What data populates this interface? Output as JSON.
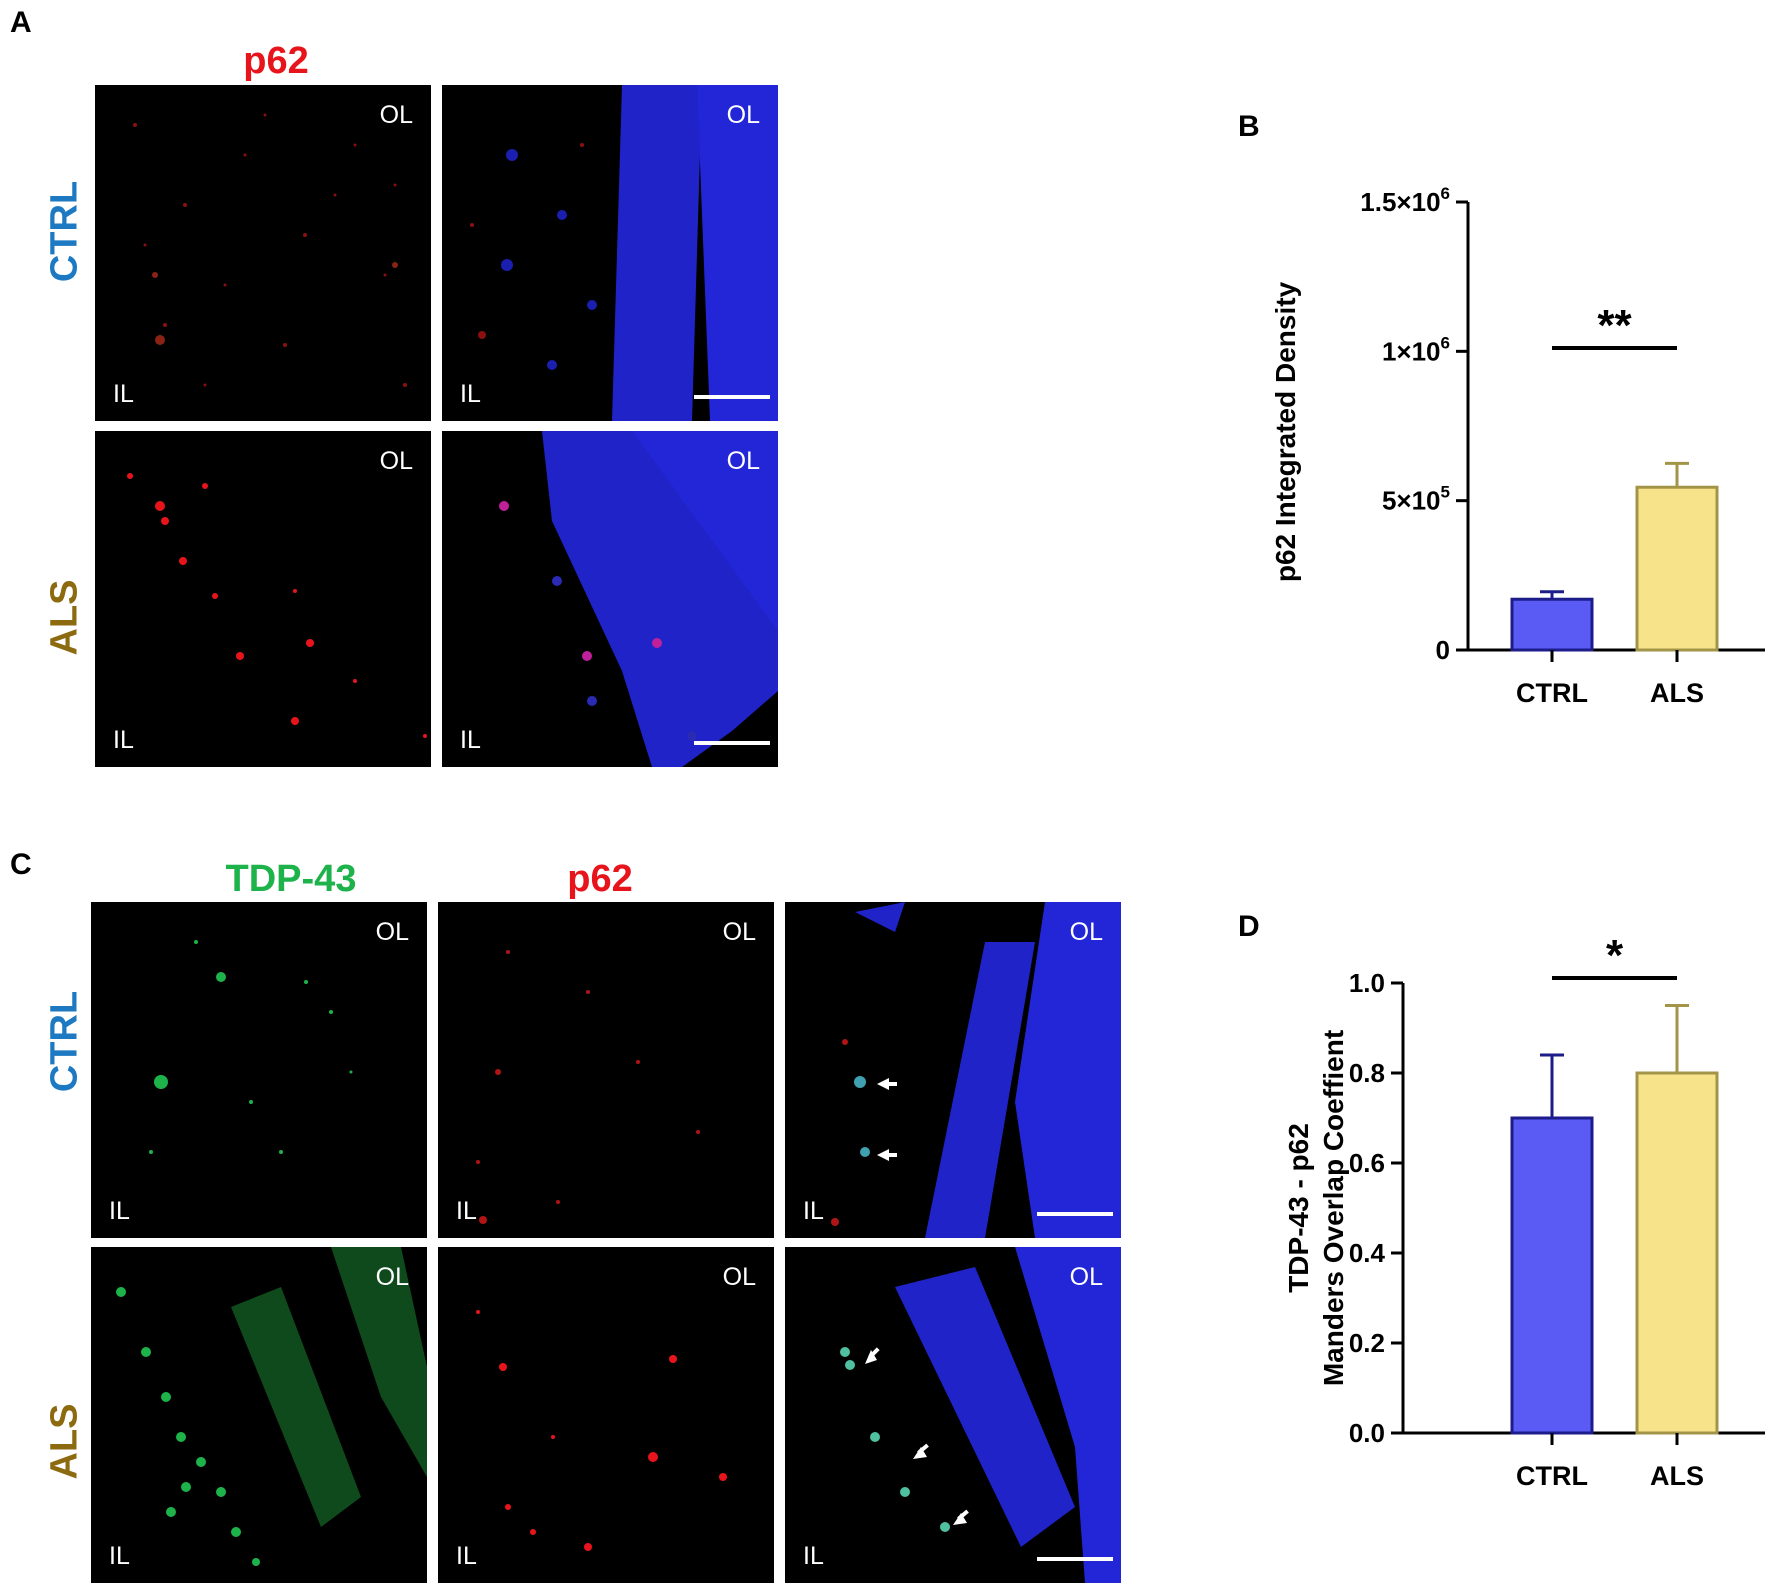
{
  "figure": {
    "panel_letters": {
      "a": "A",
      "b": "B",
      "c": "C",
      "d": "D"
    },
    "panel_a": {
      "column_header": "p62",
      "rows": [
        "CTRL",
        "ALS"
      ],
      "layer_labels": {
        "outer": "OL",
        "inner": "IL"
      }
    },
    "panel_c": {
      "column_headers": [
        "TDP-43",
        "p62"
      ],
      "rows": [
        "CTRL",
        "ALS"
      ],
      "layer_labels": {
        "outer": "OL",
        "inner": "IL"
      }
    },
    "colors": {
      "red_stain": "#e8141c",
      "green_stain": "#1db34a",
      "ctrl_label": "#1c79c2",
      "als_label": "#8c6b10",
      "ctrl_bar": "#5a5af5",
      "ctrl_bar_edge": "#1c1c8a",
      "als_bar": "#f7e38a",
      "als_bar_edge": "#a39548"
    }
  },
  "chart_data": [
    {
      "panel": "B",
      "type": "bar",
      "categories": [
        "CTRL",
        "ALS"
      ],
      "values": [
        170000,
        545000
      ],
      "errors": [
        25000,
        80000
      ],
      "ylabel": "p62 Integrated Density",
      "ylim": [
        0,
        1500000
      ],
      "ytick_values": [
        0,
        500000,
        1000000,
        1500000
      ],
      "ytick_labels": [
        {
          "base": "0",
          "exp": ""
        },
        {
          "base": "5×10",
          "exp": "5"
        },
        {
          "base": "1×10",
          "exp": "6"
        },
        {
          "base": "1.5×10",
          "exp": "6"
        }
      ],
      "significance": "**",
      "grid": false
    },
    {
      "panel": "D",
      "type": "bar",
      "categories": [
        "CTRL",
        "ALS"
      ],
      "values": [
        0.7,
        0.8
      ],
      "errors": [
        0.14,
        0.15
      ],
      "ylabel_lines": [
        "TDP-43 - p62",
        "Manders Overlap Coeffient"
      ],
      "ylim": [
        0,
        1.0
      ],
      "ytick_values": [
        0,
        0.2,
        0.4,
        0.6,
        0.8,
        1.0
      ],
      "ytick_labels": [
        "0.0",
        "0.2",
        "0.4",
        "0.6",
        "0.8",
        "1.0"
      ],
      "significance": "*",
      "grid": false
    }
  ]
}
